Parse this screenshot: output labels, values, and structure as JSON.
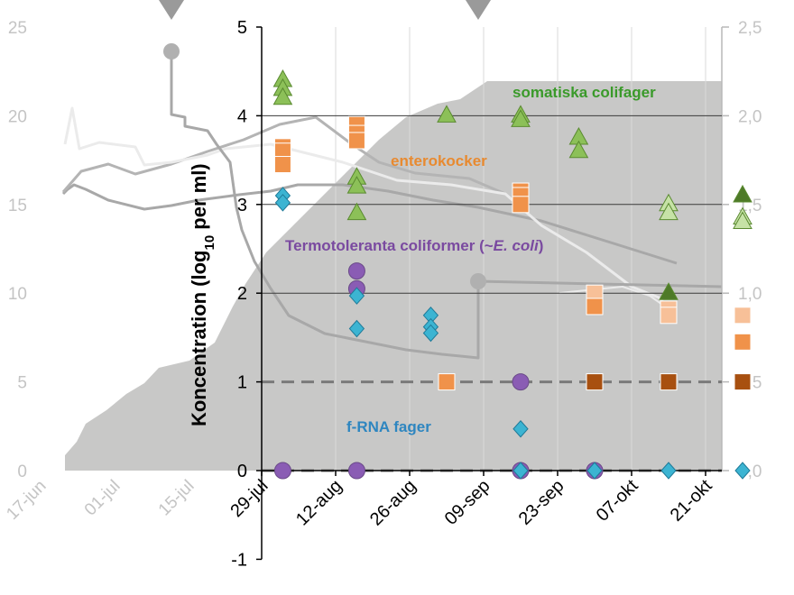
{
  "chart_data": [
    {
      "type": "line",
      "role": "background-trends",
      "x_tick_labels": [
        "17-jun",
        "01-jul",
        "15-jul"
      ],
      "y_left_ticks": [
        "0",
        "5",
        "10",
        "15",
        "20",
        "25"
      ],
      "y_right_ticks": [
        "0,0",
        "0,5",
        "1,0",
        "1,5",
        "2,0",
        "2,5"
      ],
      "ylim_left": [
        0,
        25
      ],
      "ylim_right": [
        0,
        2.5
      ],
      "colors": {
        "area": "#c8c8c7",
        "line_dark": "#a8a8a8",
        "line_mid": "#b4b4b4",
        "line_light": "#ebebeb",
        "tick": "#c4c4c4",
        "marker": "#b0b0b0"
      }
    },
    {
      "type": "scatter",
      "xlabel": "",
      "ylabel": "Koncentration (log10 per ml)",
      "ylabel_parts": {
        "main": "Koncentration (log",
        "sub": "10",
        "end": " per ml)"
      },
      "x_tick_labels": [
        "29-jul",
        "12-aug",
        "26-aug",
        "09-sep",
        "23-sep",
        "07-okt",
        "21-okt"
      ],
      "y_ticks": [
        "-1",
        "0",
        "1",
        "2",
        "3",
        "4",
        "5"
      ],
      "ylim": [
        -1,
        5
      ],
      "grid": "horizontal",
      "reference_lines": [
        0,
        1
      ],
      "series": [
        {
          "name": "somatiska colifager",
          "color": "#3a9a2a",
          "marker_colors": {
            "green": "#8cc058",
            "dark": "#4e7a28",
            "light": "#c6e2a6"
          },
          "points": [
            {
              "x": "02-aug",
              "y": 4.4,
              "fill": "green"
            },
            {
              "x": "02-aug",
              "y": 4.3,
              "fill": "green"
            },
            {
              "x": "02-aug",
              "y": 4.2,
              "fill": "green"
            },
            {
              "x": "16-aug",
              "y": 3.3,
              "fill": "green"
            },
            {
              "x": "16-aug",
              "y": 3.2,
              "fill": "green"
            },
            {
              "x": "16-aug",
              "y": 2.9,
              "fill": "green"
            },
            {
              "x": "02-sep",
              "y": 4.0,
              "fill": "green"
            },
            {
              "x": "16-sep",
              "y": 4.0,
              "fill": "green"
            },
            {
              "x": "16-sep",
              "y": 3.95,
              "fill": "green"
            },
            {
              "x": "27-sep",
              "y": 3.75,
              "fill": "green"
            },
            {
              "x": "27-sep",
              "y": 3.6,
              "fill": "green"
            },
            {
              "x": "14-okt",
              "y": 3.0,
              "fill": "light"
            },
            {
              "x": "14-okt",
              "y": 2.9,
              "fill": "light"
            },
            {
              "x": "14-okt",
              "y": 2.0,
              "fill": "dark"
            },
            {
              "x": "28-okt",
              "y": 3.1,
              "fill": "dark"
            },
            {
              "x": "28-okt",
              "y": 2.85,
              "fill": "light"
            },
            {
              "x": "28-okt",
              "y": 2.8,
              "fill": "light"
            }
          ]
        },
        {
          "name": "enterokocker",
          "color": "#e88a30",
          "marker_colors": {
            "orange": "#f0924a",
            "dark": "#a85010",
            "light": "#f7c098"
          },
          "points": [
            {
              "x": "02-aug",
              "y": 3.65,
              "fill": "orange"
            },
            {
              "x": "02-aug",
              "y": 3.6,
              "fill": "orange"
            },
            {
              "x": "02-aug",
              "y": 3.45,
              "fill": "orange"
            },
            {
              "x": "16-aug",
              "y": 3.9,
              "fill": "orange"
            },
            {
              "x": "16-aug",
              "y": 3.8,
              "fill": "orange"
            },
            {
              "x": "16-aug",
              "y": 3.72,
              "fill": "orange"
            },
            {
              "x": "02-sep",
              "y": 1.0,
              "fill": "orange"
            },
            {
              "x": "16-sep",
              "y": 3.15,
              "fill": "orange"
            },
            {
              "x": "16-sep",
              "y": 3.1,
              "fill": "orange"
            },
            {
              "x": "16-sep",
              "y": 3.0,
              "fill": "orange"
            },
            {
              "x": "30-sep",
              "y": 2.0,
              "fill": "light"
            },
            {
              "x": "30-sep",
              "y": 1.85,
              "fill": "orange"
            },
            {
              "x": "30-sep",
              "y": 1.0,
              "fill": "dark"
            },
            {
              "x": "14-okt",
              "y": 1.82,
              "fill": "light"
            },
            {
              "x": "14-okt",
              "y": 1.75,
              "fill": "light"
            },
            {
              "x": "14-okt",
              "y": 1.0,
              "fill": "dark"
            },
            {
              "x": "28-okt",
              "y": 1.75,
              "fill": "light"
            },
            {
              "x": "28-okt",
              "y": 1.45,
              "fill": "orange"
            },
            {
              "x": "28-okt",
              "y": 1.0,
              "fill": "dark"
            }
          ]
        },
        {
          "name": "Termotoleranta coliformer (~E. coli)",
          "color": "#7a4aa0",
          "label_parts": {
            "main": "Termotoleranta coliformer (~",
            "italic": "E. coli",
            "end": ")"
          },
          "marker_colors": {
            "fill": "#8a5cb4"
          },
          "points": [
            {
              "x": "02-aug",
              "y": 0,
              "fill": "fill"
            },
            {
              "x": "16-aug",
              "y": 2.25,
              "fill": "fill"
            },
            {
              "x": "16-aug",
              "y": 2.05,
              "fill": "fill"
            },
            {
              "x": "16-aug",
              "y": 0,
              "fill": "fill"
            },
            {
              "x": "16-sep",
              "y": 1.0,
              "fill": "fill"
            },
            {
              "x": "16-sep",
              "y": 0,
              "fill": "fill"
            },
            {
              "x": "30-sep",
              "y": 0,
              "fill": "fill"
            }
          ]
        },
        {
          "name": "f-RNA fager",
          "color": "#2e86c0",
          "marker_colors": {
            "fill": "#3cb4d2"
          },
          "points": [
            {
              "x": "02-aug",
              "y": 3.1,
              "fill": "fill"
            },
            {
              "x": "02-aug",
              "y": 3.02,
              "fill": "fill"
            },
            {
              "x": "16-aug",
              "y": 1.97,
              "fill": "fill"
            },
            {
              "x": "16-aug",
              "y": 1.6,
              "fill": "fill"
            },
            {
              "x": "30-aug",
              "y": 1.75,
              "fill": "fill"
            },
            {
              "x": "30-aug",
              "y": 1.62,
              "fill": "fill"
            },
            {
              "x": "30-aug",
              "y": 1.55,
              "fill": "fill"
            },
            {
              "x": "16-sep",
              "y": 0.47,
              "fill": "fill"
            },
            {
              "x": "16-sep",
              "y": 0,
              "fill": "fill"
            },
            {
              "x": "30-sep",
              "y": 0,
              "fill": "fill"
            },
            {
              "x": "14-okt",
              "y": 0,
              "fill": "fill"
            },
            {
              "x": "28-okt",
              "y": 0,
              "fill": "fill"
            }
          ]
        }
      ]
    }
  ]
}
